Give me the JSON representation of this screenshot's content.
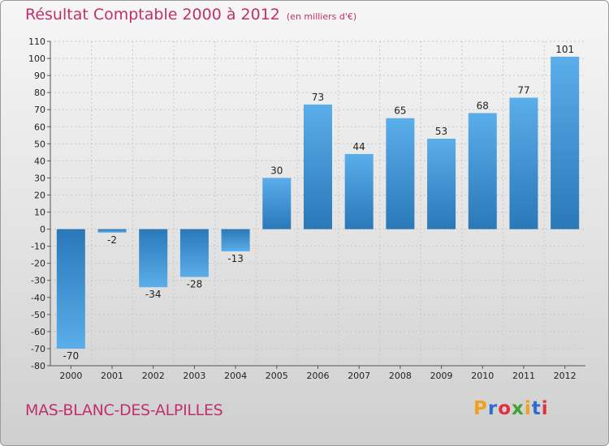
{
  "title": "Résultat Comptable 2000 à 2012",
  "unit": "(en milliers d'€)",
  "commune": "MAS-BLANC-DES-ALPILLES",
  "brand": {
    "text": "Proxiti",
    "letter_colors": [
      "#f0a020",
      "#2a6fd0",
      "#e03040",
      "#40a030",
      "#f0a020",
      "#2a6fd0",
      "#e03040"
    ]
  },
  "colors": {
    "bar_light": "#5aaeea",
    "bar_dark": "#2a78b8",
    "title": "#c0306a",
    "grid": "#c8c8c8"
  },
  "chart_data": {
    "type": "bar",
    "title": "Résultat Comptable 2000 à 2012",
    "ylabel": "(en milliers d'€)",
    "xlabel": "",
    "categories": [
      "2000",
      "2001",
      "2002",
      "2003",
      "2004",
      "2005",
      "2006",
      "2007",
      "2008",
      "2009",
      "2010",
      "2011",
      "2012"
    ],
    "values": [
      -70,
      -2,
      -34,
      -28,
      -13,
      30,
      73,
      44,
      65,
      53,
      68,
      77,
      101
    ],
    "labels": [
      "-70",
      "-2",
      "-34",
      "-28",
      "-13",
      "30",
      "73",
      "44",
      "65",
      "53",
      "68",
      "77",
      "101"
    ],
    "ylim": [
      -80,
      110
    ],
    "yticks": [
      -80,
      -70,
      -60,
      -50,
      -40,
      -30,
      -20,
      -10,
      0,
      10,
      20,
      30,
      40,
      50,
      60,
      70,
      80,
      90,
      100,
      110
    ],
    "grid": true
  }
}
